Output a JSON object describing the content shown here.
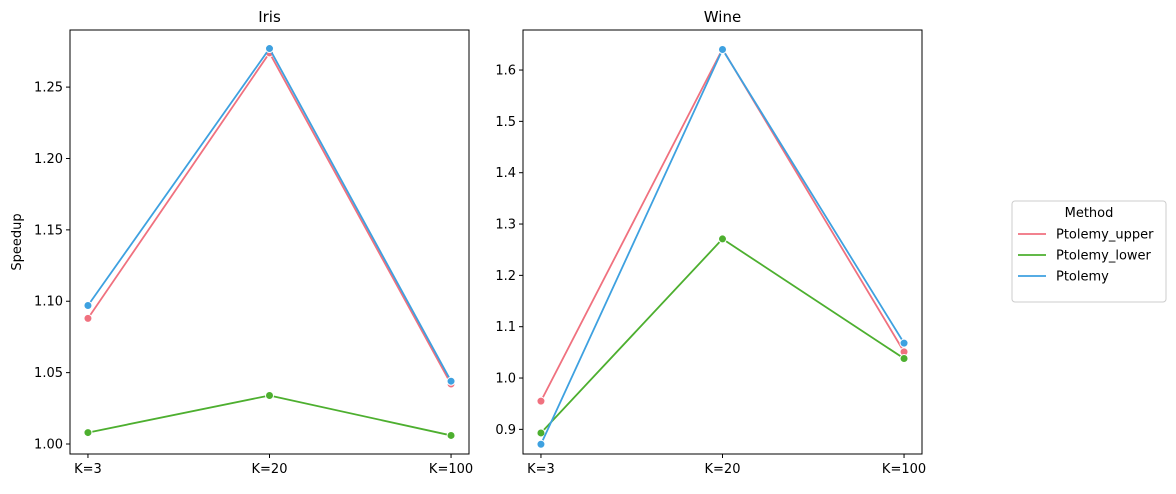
{
  "chart_data": [
    {
      "type": "line",
      "title": "Iris",
      "xlabel": "",
      "ylabel": "Speedup",
      "categories": [
        "K=3",
        "K=20",
        "K=100"
      ],
      "ylim": [
        0.993,
        1.29
      ],
      "yticks": [
        1.0,
        1.05,
        1.1,
        1.15,
        1.2,
        1.25
      ],
      "ytick_labels": [
        "1.00",
        "1.05",
        "1.10",
        "1.15",
        "1.20",
        "1.25"
      ],
      "grid": false,
      "series": [
        {
          "name": "Ptolemy_upper",
          "values": [
            1.088,
            1.274,
            1.042
          ]
        },
        {
          "name": "Ptolemy_lower",
          "values": [
            1.008,
            1.034,
            1.006
          ]
        },
        {
          "name": "Ptolemy",
          "values": [
            1.097,
            1.277,
            1.044
          ]
        }
      ]
    },
    {
      "type": "line",
      "title": "Wine",
      "xlabel": "",
      "ylabel": "",
      "categories": [
        "K=3",
        "K=20",
        "K=100"
      ],
      "ylim": [
        0.852,
        1.678
      ],
      "yticks": [
        0.9,
        1.0,
        1.1,
        1.2,
        1.3,
        1.4,
        1.5,
        1.6
      ],
      "ytick_labels": [
        "0.9",
        "1.0",
        "1.1",
        "1.2",
        "1.3",
        "1.4",
        "1.5",
        "1.6"
      ],
      "grid": false,
      "series": [
        {
          "name": "Ptolemy_upper",
          "values": [
            0.955,
            1.641,
            1.051
          ]
        },
        {
          "name": "Ptolemy_lower",
          "values": [
            0.893,
            1.271,
            1.038
          ]
        },
        {
          "name": "Ptolemy",
          "values": [
            0.871,
            1.64,
            1.068
          ]
        }
      ]
    }
  ],
  "legend": {
    "title": "Method",
    "placement": "right",
    "entries": [
      "Ptolemy_upper",
      "Ptolemy_lower",
      "Ptolemy"
    ]
  },
  "colors": {
    "Ptolemy_upper": "#f0717f",
    "Ptolemy_lower": "#4daf2f",
    "Ptolemy": "#3ea1e0"
  }
}
